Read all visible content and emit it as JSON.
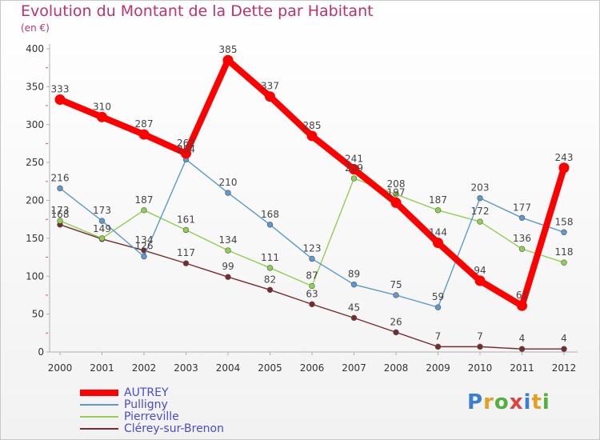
{
  "header": {
    "title": "Evolution du Montant de la Dette par Habitant",
    "subtitle": "(en €)"
  },
  "brand": {
    "letters": [
      "P",
      "r",
      "o",
      "x",
      "i",
      "t",
      "i"
    ],
    "colors": [
      "#3a7fd0",
      "#e6a020",
      "#50b040",
      "#e04040",
      "#3a7fd0",
      "#e6a020",
      "#50b040"
    ]
  },
  "chart_data": {
    "type": "line",
    "x": [
      "2000",
      "2001",
      "2002",
      "2003",
      "2004",
      "2005",
      "2006",
      "2007",
      "2008",
      "2009",
      "2010",
      "2011",
      "2012"
    ],
    "ylim": [
      0,
      400
    ],
    "yticks": [
      "0",
      "50",
      "100",
      "150",
      "200",
      "250",
      "300",
      "350",
      "400"
    ],
    "grid": false,
    "legend_position": "bottom-left",
    "series": [
      {
        "name": "Clérey-sur-Brenon",
        "color": "#7a2a2a",
        "values": [
          168,
          149,
          134,
          117,
          99,
          82,
          63,
          45,
          26,
          7,
          7,
          4,
          4
        ],
        "labels": [
          "168",
          "149",
          "134",
          "117",
          "99",
          "82",
          "63",
          "45",
          "26",
          "7",
          "7",
          "4",
          "4"
        ]
      },
      {
        "name": "Pierreville",
        "color": "#90d050",
        "values": [
          173,
          150,
          187,
          161,
          134,
          111,
          87,
          229,
          208,
          187,
          172,
          136,
          118
        ],
        "labels": [
          "173",
          "",
          "187",
          "161",
          "134",
          "111",
          "87",
          "229",
          "208",
          "187",
          "172",
          "136",
          "118"
        ]
      },
      {
        "name": "Pulligny",
        "color": "#5a9ad0",
        "values": [
          216,
          173,
          126,
          254,
          210,
          168,
          123,
          89,
          75,
          59,
          203,
          177,
          158
        ],
        "labels": [
          "216",
          "173",
          "126",
          "254",
          "210",
          "168",
          "123",
          "89",
          "75",
          "59",
          "203",
          "177",
          "158"
        ]
      },
      {
        "name": "AUTREY",
        "color": "#ff0000",
        "values": [
          333,
          310,
          287,
          262,
          385,
          337,
          285,
          241,
          197,
          144,
          94,
          61,
          243
        ],
        "labels": [
          "333",
          "310",
          "287",
          "262",
          "385",
          "337",
          "285",
          "241",
          "197",
          "144",
          "94",
          "61",
          "243"
        ]
      }
    ],
    "legend_order": [
      "AUTREY",
      "Pulligny",
      "Pierreville",
      "Clérey-sur-Brenon"
    ]
  }
}
